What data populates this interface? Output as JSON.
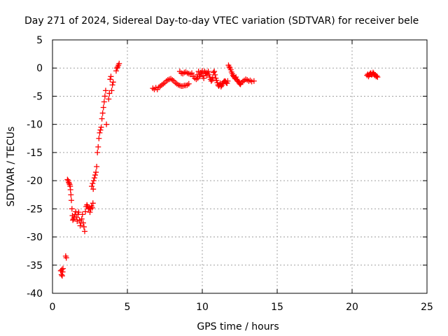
{
  "chart_data": {
    "type": "scatter",
    "title": "Day 271 of 2024, Sidereal Day-to-day VTEC variation (SDTVAR) for receiver bele",
    "xlabel": "GPS time / hours",
    "ylabel": "SDTVAR / TECUs",
    "xlim": [
      0,
      25
    ],
    "ylim": [
      -40,
      5
    ],
    "xticks": [
      0,
      5,
      10,
      15,
      20,
      25
    ],
    "yticks": [
      5,
      0,
      -5,
      -10,
      -15,
      -20,
      -25,
      -30,
      -35,
      -40
    ],
    "grid": true,
    "marker": "+",
    "series": [
      {
        "name": "SDTVAR",
        "color": "#ff0000",
        "points": [
          [
            0.55,
            -36.0
          ],
          [
            0.6,
            -36.7
          ],
          [
            0.62,
            -35.8
          ],
          [
            0.65,
            -36.9
          ],
          [
            0.68,
            -36.2
          ],
          [
            0.7,
            -35.6
          ],
          [
            0.88,
            -33.4
          ],
          [
            0.92,
            -33.7
          ],
          [
            1.0,
            -19.8
          ],
          [
            1.05,
            -20.0
          ],
          [
            1.08,
            -20.3
          ],
          [
            1.12,
            -20.5
          ],
          [
            1.15,
            -20.7
          ],
          [
            1.18,
            -21.0
          ],
          [
            1.2,
            -21.6
          ],
          [
            1.23,
            -22.5
          ],
          [
            1.26,
            -23.5
          ],
          [
            1.3,
            -25.0
          ],
          [
            1.33,
            -26.2
          ],
          [
            1.36,
            -27.0
          ],
          [
            1.4,
            -26.8
          ],
          [
            1.45,
            -26.5
          ],
          [
            1.5,
            -26.0
          ],
          [
            1.55,
            -25.5
          ],
          [
            1.6,
            -26.5
          ],
          [
            1.65,
            -27.2
          ],
          [
            1.7,
            -26.0
          ],
          [
            1.75,
            -25.6
          ],
          [
            1.8,
            -27.0
          ],
          [
            1.85,
            -28.0
          ],
          [
            1.9,
            -27.5
          ],
          [
            1.95,
            -26.8
          ],
          [
            2.0,
            -26.0
          ],
          [
            2.05,
            -27.5
          ],
          [
            2.1,
            -28.2
          ],
          [
            2.15,
            -29.0
          ],
          [
            2.2,
            -25.5
          ],
          [
            2.25,
            -24.6
          ],
          [
            2.3,
            -24.3
          ],
          [
            2.35,
            -24.6
          ],
          [
            2.4,
            -25.0
          ],
          [
            2.45,
            -24.8
          ],
          [
            2.5,
            -25.6
          ],
          [
            2.55,
            -25.0
          ],
          [
            2.6,
            -24.5
          ],
          [
            2.62,
            -21.0
          ],
          [
            2.65,
            -24.8
          ],
          [
            2.68,
            -20.5
          ],
          [
            2.7,
            -24.0
          ],
          [
            2.72,
            -21.5
          ],
          [
            2.75,
            -20.0
          ],
          [
            2.8,
            -19.5
          ],
          [
            2.85,
            -19.0
          ],
          [
            2.9,
            -18.5
          ],
          [
            2.95,
            -17.5
          ],
          [
            3.0,
            -15.0
          ],
          [
            3.05,
            -14.0
          ],
          [
            3.1,
            -12.5
          ],
          [
            3.15,
            -11.5
          ],
          [
            3.2,
            -11.0
          ],
          [
            3.25,
            -10.5
          ],
          [
            3.3,
            -9.0
          ],
          [
            3.35,
            -8.0
          ],
          [
            3.4,
            -7.0
          ],
          [
            3.45,
            -6.0
          ],
          [
            3.5,
            -5.0
          ],
          [
            3.55,
            -4.0
          ],
          [
            3.6,
            -10.0
          ],
          [
            3.75,
            -5.5
          ],
          [
            3.8,
            -4.5
          ],
          [
            3.85,
            -2.0
          ],
          [
            3.9,
            -1.5
          ],
          [
            3.95,
            -4.0
          ],
          [
            4.0,
            -3.0
          ],
          [
            4.05,
            -2.5
          ],
          [
            4.25,
            -0.5
          ],
          [
            4.3,
            0.0
          ],
          [
            4.35,
            0.2
          ],
          [
            4.4,
            0.5
          ],
          [
            4.45,
            0.8
          ],
          [
            6.7,
            -3.6
          ],
          [
            6.8,
            -3.8
          ],
          [
            6.9,
            -3.5
          ],
          [
            7.0,
            -3.8
          ],
          [
            7.1,
            -3.4
          ],
          [
            7.2,
            -3.2
          ],
          [
            7.3,
            -3.0
          ],
          [
            7.4,
            -2.8
          ],
          [
            7.5,
            -2.6
          ],
          [
            7.6,
            -2.3
          ],
          [
            7.7,
            -2.1
          ],
          [
            7.8,
            -2.0
          ],
          [
            7.9,
            -1.9
          ],
          [
            8.0,
            -2.1
          ],
          [
            8.1,
            -2.3
          ],
          [
            8.2,
            -2.6
          ],
          [
            8.3,
            -2.8
          ],
          [
            8.4,
            -3.0
          ],
          [
            8.5,
            -3.1
          ],
          [
            8.6,
            -3.2
          ],
          [
            8.7,
            -3.2
          ],
          [
            8.8,
            -3.1
          ],
          [
            8.9,
            -3.1
          ],
          [
            9.0,
            -3.0
          ],
          [
            9.1,
            -2.8
          ],
          [
            8.5,
            -0.6
          ],
          [
            8.6,
            -0.9
          ],
          [
            8.7,
            -1.0
          ],
          [
            8.8,
            -0.8
          ],
          [
            8.9,
            -0.7
          ],
          [
            9.0,
            -0.9
          ],
          [
            9.1,
            -1.0
          ],
          [
            9.2,
            -1.1
          ],
          [
            9.3,
            -0.9
          ],
          [
            9.4,
            -1.5
          ],
          [
            9.5,
            -1.8
          ],
          [
            9.6,
            -2.0
          ],
          [
            9.65,
            -1.2
          ],
          [
            9.7,
            -1.8
          ],
          [
            9.75,
            -0.6
          ],
          [
            9.8,
            -1.2
          ],
          [
            9.85,
            -1.5
          ],
          [
            9.9,
            -0.8
          ],
          [
            9.95,
            -1.0
          ],
          [
            10.0,
            -0.5
          ],
          [
            10.05,
            -1.4
          ],
          [
            10.1,
            -1.8
          ],
          [
            10.15,
            -0.6
          ],
          [
            10.2,
            -1.0
          ],
          [
            10.25,
            -0.8
          ],
          [
            10.3,
            -1.3
          ],
          [
            10.35,
            -0.9
          ],
          [
            10.4,
            -0.6
          ],
          [
            10.45,
            -1.2
          ],
          [
            10.5,
            -1.6
          ],
          [
            10.55,
            -2.0
          ],
          [
            10.6,
            -2.3
          ],
          [
            10.65,
            -2.1
          ],
          [
            10.7,
            -1.7
          ],
          [
            10.75,
            -0.8
          ],
          [
            10.8,
            -0.6
          ],
          [
            10.85,
            -1.2
          ],
          [
            10.9,
            -1.8
          ],
          [
            10.95,
            -2.2
          ],
          [
            11.0,
            -2.6
          ],
          [
            11.05,
            -3.0
          ],
          [
            11.1,
            -3.2
          ],
          [
            11.15,
            -3.0
          ],
          [
            11.2,
            -2.7
          ],
          [
            11.25,
            -3.3
          ],
          [
            11.3,
            -3.1
          ],
          [
            11.35,
            -2.8
          ],
          [
            11.4,
            -2.6
          ],
          [
            11.45,
            -2.4
          ],
          [
            11.5,
            -2.3
          ],
          [
            11.55,
            -2.4
          ],
          [
            11.6,
            -2.6
          ],
          [
            11.65,
            -2.7
          ],
          [
            11.7,
            -2.3
          ],
          [
            11.75,
            0.5
          ],
          [
            11.8,
            0.2
          ],
          [
            11.85,
            0.0
          ],
          [
            11.9,
            -0.3
          ],
          [
            11.95,
            -0.7
          ],
          [
            12.0,
            -1.0
          ],
          [
            12.05,
            -1.3
          ],
          [
            12.1,
            -1.5
          ],
          [
            12.15,
            -1.7
          ],
          [
            12.2,
            -1.9
          ],
          [
            12.25,
            -1.6
          ],
          [
            12.3,
            -2.0
          ],
          [
            12.35,
            -2.2
          ],
          [
            12.4,
            -2.4
          ],
          [
            12.45,
            -2.6
          ],
          [
            12.5,
            -2.8
          ],
          [
            12.55,
            -2.9
          ],
          [
            12.6,
            -2.6
          ],
          [
            12.7,
            -2.4
          ],
          [
            12.8,
            -2.2
          ],
          [
            12.9,
            -2.0
          ],
          [
            13.0,
            -2.1
          ],
          [
            13.1,
            -2.3
          ],
          [
            13.2,
            -2.2
          ],
          [
            13.3,
            -2.4
          ],
          [
            13.45,
            -2.3
          ],
          [
            21.0,
            -1.3
          ],
          [
            21.05,
            -1.1
          ],
          [
            21.1,
            -1.5
          ],
          [
            21.15,
            -1.2
          ],
          [
            21.2,
            -1.0
          ],
          [
            21.25,
            -0.9
          ],
          [
            21.3,
            -1.2
          ],
          [
            21.35,
            -1.1
          ],
          [
            21.4,
            -0.8
          ],
          [
            21.45,
            -1.0
          ],
          [
            21.5,
            -1.3
          ],
          [
            21.55,
            -1.2
          ],
          [
            21.6,
            -1.5
          ],
          [
            21.65,
            -1.4
          ],
          [
            21.7,
            -1.6
          ]
        ]
      }
    ]
  }
}
